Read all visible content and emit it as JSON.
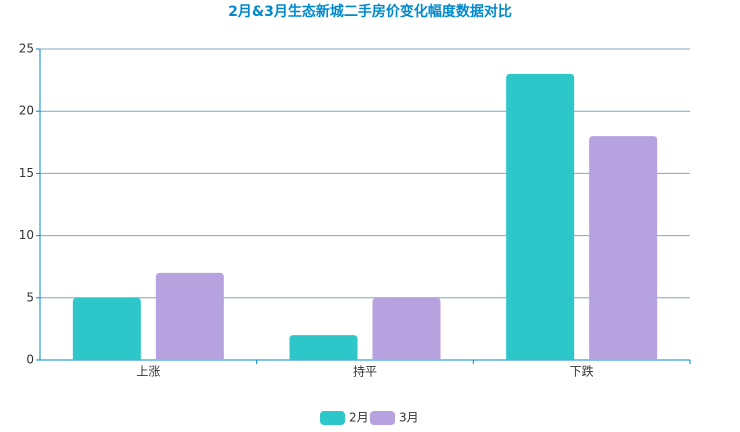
{
  "chart_data": {
    "type": "bar",
    "title": "2月&3月生态新城二手房价变化幅度数据对比",
    "categories": [
      "上涨",
      "持平",
      "下跌"
    ],
    "series": [
      {
        "name": "2月",
        "color": "#2ec7c9",
        "values": [
          5,
          2,
          23
        ]
      },
      {
        "name": "3月",
        "color": "#b6a2de",
        "values": [
          7,
          5,
          18
        ]
      }
    ],
    "ylim": [
      0,
      25
    ],
    "yticks": [
      0,
      5,
      10,
      15,
      20,
      25
    ],
    "grid": true,
    "legend": "bottom"
  }
}
